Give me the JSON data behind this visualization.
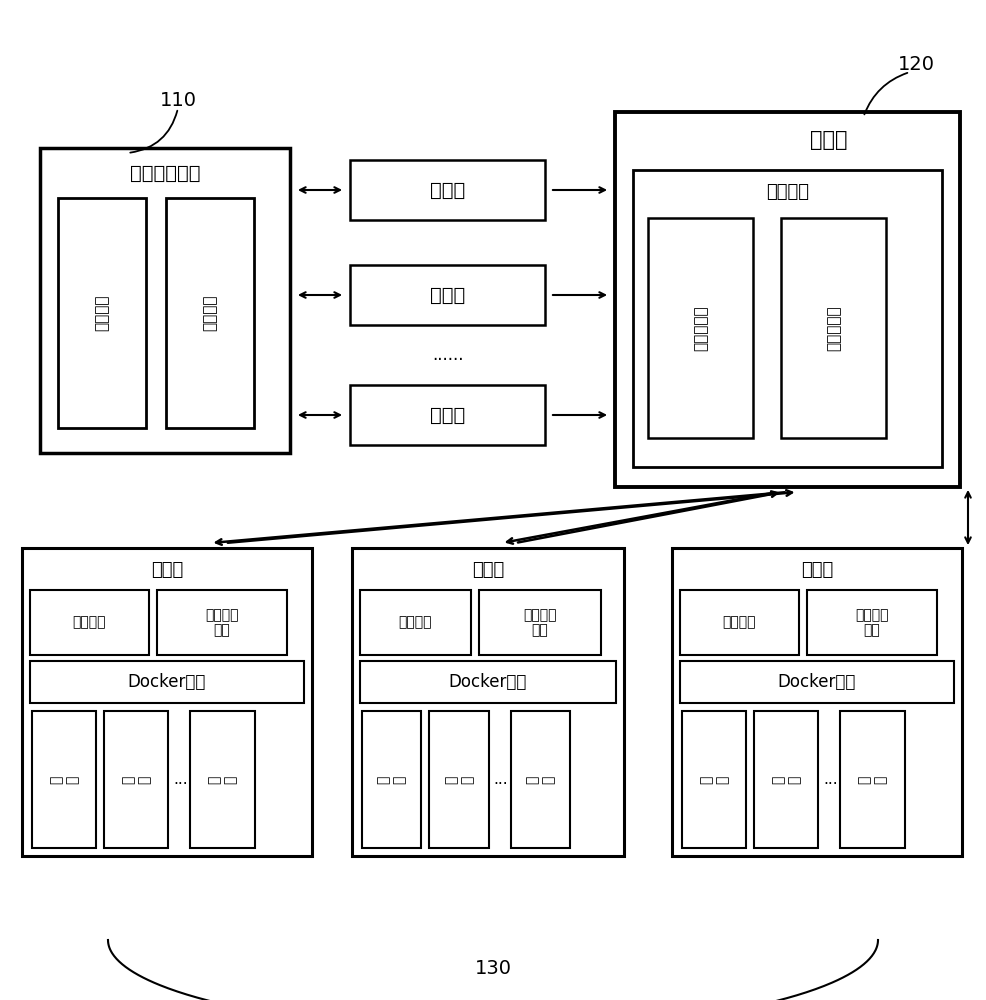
{
  "bg_color": "#ffffff",
  "label_110": "110",
  "label_120": "120",
  "label_130": "130",
  "meta_server_title": "元数据服务器",
  "meta_box1_text": "用户策略",
  "meta_box2_text": "用户策略",
  "master_node_title": "主节点",
  "guardian_title": "守护进程",
  "master_box1_text": "资源调度器",
  "master_box2_text": "任务管理器",
  "client_text": "客户端",
  "slave_title": "从节点",
  "resource_monitor": "资源监控",
  "container_ctrl_line1": "肉容器控",
  "container_ctrl_line2": "制器",
  "docker_service": "Docker服务",
  "container_text_line1": "容",
  "container_text_line2": "器",
  "dots3": "......",
  "dots_between": "......"
}
